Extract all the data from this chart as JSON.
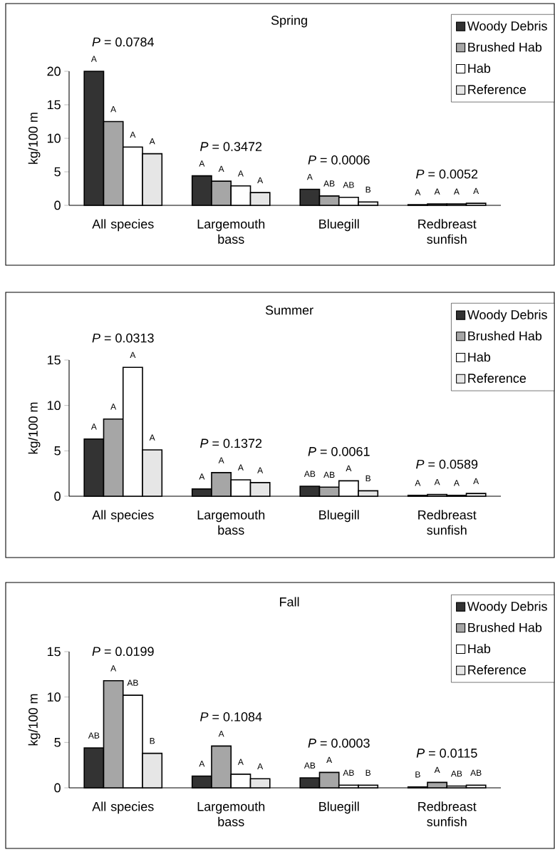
{
  "chart_data": [
    {
      "type": "bar",
      "title": "Spring",
      "ylabel": "kg/100 m",
      "categories": [
        "All species",
        "Largemouth bass",
        "Bluegill",
        "Redbreast sunfish"
      ],
      "ylim": [
        0,
        20
      ],
      "yticks": [
        0,
        5,
        10,
        15,
        20
      ],
      "legend": "top right",
      "series": [
        {
          "name": "Woody Debris",
          "color": "#333333",
          "values": [
            20,
            4.4,
            2.4,
            0.1
          ],
          "value_labels": [
            "A",
            "A",
            "A",
            "A"
          ]
        },
        {
          "name": "Brushed Hab",
          "color": "#a6a6a6",
          "values": [
            12.5,
            3.6,
            1.4,
            0.2
          ],
          "value_labels": [
            "A",
            "A",
            "AB",
            "A"
          ]
        },
        {
          "name": "Hab",
          "color": "#ffffff",
          "values": [
            8.7,
            2.9,
            1.2,
            0.2
          ],
          "value_labels": [
            "A",
            "A",
            "AB",
            "A"
          ]
        },
        {
          "name": "Reference",
          "color": "#e6e6e6",
          "values": [
            7.7,
            1.9,
            0.5,
            0.3
          ],
          "value_labels": [
            "A",
            "A",
            "B",
            "A"
          ]
        }
      ],
      "annotations": [
        "*P* = 0.0784",
        "*P* = 0.3472",
        "*P* = 0.0006",
        "*P* = 0.0052"
      ]
    },
    {
      "type": "bar",
      "title": "Summer",
      "ylabel": "kg/100 m",
      "categories": [
        "All species",
        "Largemouth bass",
        "Bluegill",
        "Redbreast sunfish"
      ],
      "ylim": [
        0,
        15
      ],
      "yticks": [
        0,
        5,
        10,
        15
      ],
      "legend": "top right",
      "series": [
        {
          "name": "Woody Debris",
          "color": "#333333",
          "values": [
            6.3,
            0.8,
            1.1,
            0.1
          ],
          "value_labels": [
            "A",
            "A",
            "AB",
            "A"
          ]
        },
        {
          "name": "Brushed Hab",
          "color": "#a6a6a6",
          "values": [
            8.5,
            2.6,
            1.0,
            0.2
          ],
          "value_labels": [
            "A",
            "A",
            "AB",
            "A"
          ]
        },
        {
          "name": "Hab",
          "color": "#ffffff",
          "values": [
            14.2,
            1.8,
            1.7,
            0.1
          ],
          "value_labels": [
            "A",
            "A",
            "A",
            "A"
          ]
        },
        {
          "name": "Reference",
          "color": "#e6e6e6",
          "values": [
            5.1,
            1.5,
            0.6,
            0.3
          ],
          "value_labels": [
            "A",
            "A",
            "B",
            "A"
          ]
        }
      ],
      "annotations": [
        "*P* = 0.0313",
        "*P* = 0.1372",
        "*P* = 0.0061",
        "*P* = 0.0589"
      ]
    },
    {
      "type": "bar",
      "title": "Fall",
      "ylabel": "kg/100 m",
      "categories": [
        "All species",
        "Largemouth bass",
        "Bluegill",
        "Redbreast sunfish"
      ],
      "ylim": [
        0,
        15
      ],
      "yticks": [
        0,
        5,
        10,
        15
      ],
      "legend": "top right",
      "series": [
        {
          "name": "Woody Debris",
          "color": "#333333",
          "values": [
            4.4,
            1.3,
            1.1,
            0.1
          ],
          "value_labels": [
            "AB",
            "A",
            "AB",
            "B"
          ]
        },
        {
          "name": "Brushed Hab",
          "color": "#a6a6a6",
          "values": [
            11.8,
            4.6,
            1.7,
            0.6
          ],
          "value_labels": [
            "A",
            "A",
            "A",
            "A"
          ]
        },
        {
          "name": "Hab",
          "color": "#ffffff",
          "values": [
            10.2,
            1.5,
            0.3,
            0.2
          ],
          "value_labels": [
            "AB",
            "A",
            "AB",
            "AB"
          ]
        },
        {
          "name": "Reference",
          "color": "#e6e6e6",
          "values": [
            3.8,
            1.0,
            0.3,
            0.3
          ],
          "value_labels": [
            "B",
            "A",
            "B",
            "AB"
          ]
        }
      ],
      "annotations": [
        "*P* = 0.0199",
        "*P* = 0.1084",
        "*P* = 0.0003",
        "*P* = 0.0115"
      ]
    }
  ]
}
